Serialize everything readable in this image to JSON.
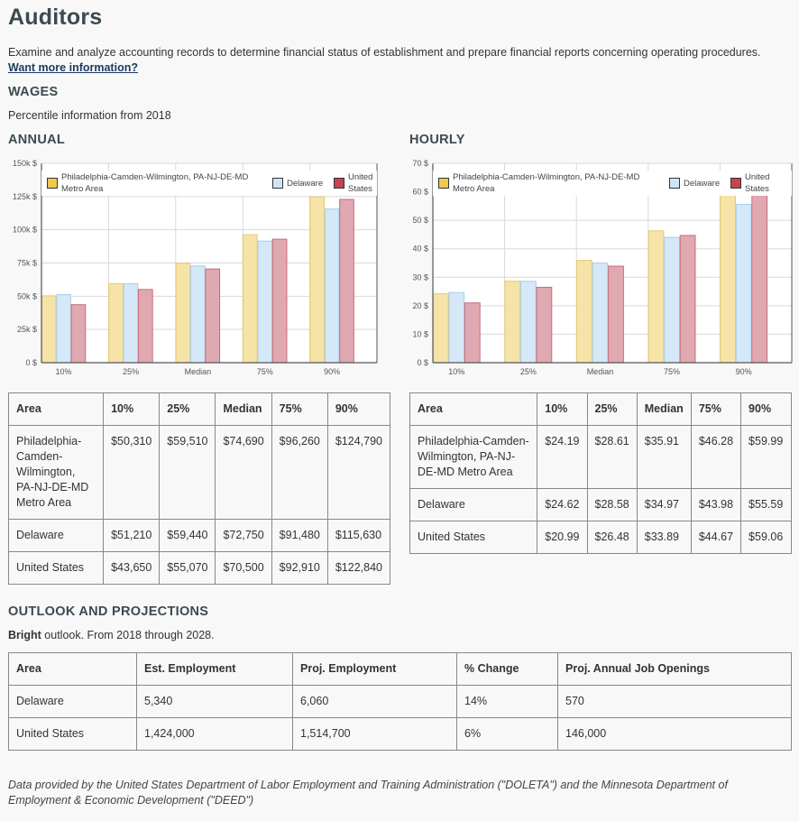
{
  "title": "Auditors",
  "description": "Examine and analyze accounting records to determine financial status of establishment and prepare financial reports concerning operating procedures.",
  "more_link": "Want more information?",
  "wages": {
    "heading": "WAGES",
    "subtitle": "Percentile information from 2018",
    "annual_heading": "ANNUAL",
    "hourly_heading": "HOURLY"
  },
  "legend": {
    "area1": "Philadelphia-Camden-Wilmington, PA-NJ-DE-MD Metro Area",
    "area2": "Delaware",
    "area3": "United States"
  },
  "colors": {
    "area1": "#f6e3a8",
    "area2": "#d4e8f7",
    "area3": "#e0a8b0",
    "area1_legend": "#f0c850",
    "area2_legend": "#cfe4f6",
    "area3_legend": "#c8454f"
  },
  "chart_data": [
    {
      "type": "bar",
      "categories": [
        "10%",
        "25%",
        "Median",
        "75%",
        "90%"
      ],
      "series": [
        {
          "name": "Philadelphia-Camden-Wilmington, PA-NJ-DE-MD Metro Area",
          "values": [
            50310,
            59510,
            74690,
            96260,
            124790
          ]
        },
        {
          "name": "Delaware",
          "values": [
            51210,
            59440,
            72750,
            91480,
            115630
          ]
        },
        {
          "name": "United States",
          "values": [
            43650,
            55070,
            70500,
            92910,
            122840
          ]
        }
      ],
      "ylim": [
        0,
        150000
      ],
      "yticks": [
        "0 $",
        "25k $",
        "50k $",
        "75k $",
        "100k $",
        "125k $",
        "150k $"
      ],
      "grid": true,
      "legend_position": "top"
    },
    {
      "type": "bar",
      "categories": [
        "10%",
        "25%",
        "Median",
        "75%",
        "90%"
      ],
      "series": [
        {
          "name": "Philadelphia-Camden-Wilmington, PA-NJ-DE-MD Metro Area",
          "values": [
            24.19,
            28.61,
            35.91,
            46.28,
            59.99
          ]
        },
        {
          "name": "Delaware",
          "values": [
            24.62,
            28.58,
            34.97,
            43.98,
            55.59
          ]
        },
        {
          "name": "United States",
          "values": [
            20.99,
            26.48,
            33.89,
            44.67,
            59.06
          ]
        }
      ],
      "ylim": [
        0,
        70
      ],
      "yticks": [
        "0 $",
        "10 $",
        "20 $",
        "30 $",
        "40 $",
        "50 $",
        "60 $",
        "70 $"
      ],
      "grid": true,
      "legend_position": "top"
    }
  ],
  "annual_table": {
    "headers": [
      "Area",
      "10%",
      "25%",
      "Median",
      "75%",
      "90%"
    ],
    "rows": [
      [
        "Philadelphia-Camden-Wilmington, PA-NJ-DE-MD Metro Area",
        "$50,310",
        "$59,510",
        "$74,690",
        "$96,260",
        "$124,790"
      ],
      [
        "Delaware",
        "$51,210",
        "$59,440",
        "$72,750",
        "$91,480",
        "$115,630"
      ],
      [
        "United States",
        "$43,650",
        "$55,070",
        "$70,500",
        "$92,910",
        "$122,840"
      ]
    ]
  },
  "hourly_table": {
    "headers": [
      "Area",
      "10%",
      "25%",
      "Median",
      "75%",
      "90%"
    ],
    "rows": [
      [
        "Philadelphia-Camden-Wilmington, PA-NJ-DE-MD Metro Area",
        "$24.19",
        "$28.61",
        "$35.91",
        "$46.28",
        "$59.99"
      ],
      [
        "Delaware",
        "$24.62",
        "$28.58",
        "$34.97",
        "$43.98",
        "$55.59"
      ],
      [
        "United States",
        "$20.99",
        "$26.48",
        "$33.89",
        "$44.67",
        "$59.06"
      ]
    ]
  },
  "outlook": {
    "heading": "OUTLOOK AND PROJECTIONS",
    "bright": "Bright",
    "text": " outlook. From 2018 through 2028.",
    "headers": [
      "Area",
      "Est. Employment",
      "Proj. Employment",
      "% Change",
      "Proj. Annual Job Openings"
    ],
    "rows": [
      [
        "Delaware",
        "5,340",
        "6,060",
        "14%",
        "570"
      ],
      [
        "United States",
        "1,424,000",
        "1,514,700",
        "6%",
        "146,000"
      ]
    ]
  },
  "source": "Data provided by the United States Department of Labor Employment and Training Administration (\"DOLETA\") and the Minnesota Department of Employment & Economic Development (\"DEED\")"
}
